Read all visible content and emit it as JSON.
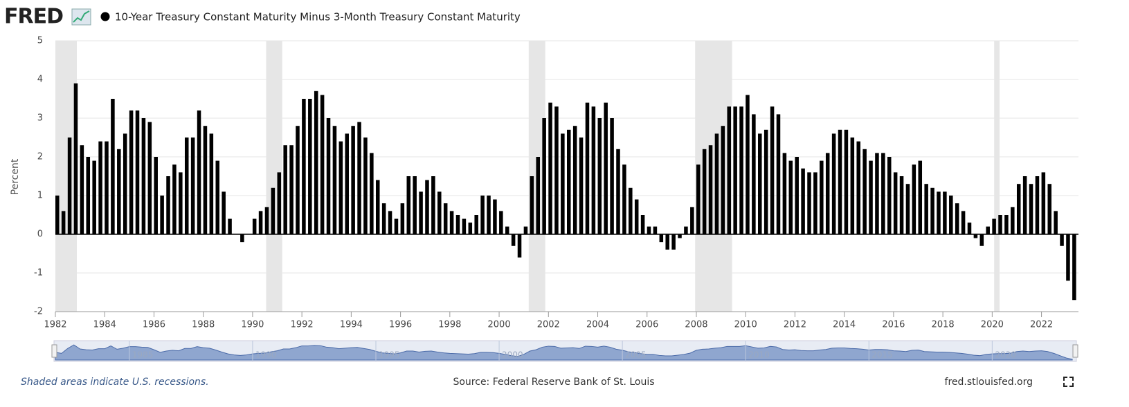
{
  "logo": "FRED",
  "chart_data": {
    "type": "bar",
    "title": "10-Year Treasury Constant Maturity Minus 3-Month Treasury Constant Maturity",
    "y_label": "Percent",
    "color": "#000000",
    "recession_color": "#e6e6e6",
    "grid": true,
    "xlim": [
      1982,
      2023.5
    ],
    "ylim": [
      -2,
      5
    ],
    "yticks": [
      -2,
      -1,
      0,
      1,
      2,
      3,
      4,
      5
    ],
    "xticks": [
      1982,
      1984,
      1986,
      1988,
      1990,
      1992,
      1994,
      1996,
      1998,
      2000,
      2002,
      2004,
      2006,
      2008,
      2010,
      2012,
      2014,
      2016,
      2018,
      2020,
      2022
    ],
    "recessions": [
      [
        1982,
        1982.87
      ],
      [
        1990.55,
        1991.2
      ],
      [
        2001.2,
        2001.87
      ],
      [
        2007.95,
        2009.45
      ],
      [
        2020.08,
        2020.3
      ]
    ],
    "x": [
      1982,
      1982.25,
      1982.5,
      1982.75,
      1983,
      1983.25,
      1983.5,
      1983.75,
      1984,
      1984.25,
      1984.5,
      1984.75,
      1985,
      1985.25,
      1985.5,
      1985.75,
      1986,
      1986.25,
      1986.5,
      1986.75,
      1987,
      1987.25,
      1987.5,
      1987.75,
      1988,
      1988.25,
      1988.5,
      1988.75,
      1989,
      1989.25,
      1989.5,
      1989.75,
      1990,
      1990.25,
      1990.5,
      1990.75,
      1991,
      1991.25,
      1991.5,
      1991.75,
      1992,
      1992.25,
      1992.5,
      1992.75,
      1993,
      1993.25,
      1993.5,
      1993.75,
      1994,
      1994.25,
      1994.5,
      1994.75,
      1995,
      1995.25,
      1995.5,
      1995.75,
      1996,
      1996.25,
      1996.5,
      1996.75,
      1997,
      1997.25,
      1997.5,
      1997.75,
      1998,
      1998.25,
      1998.5,
      1998.75,
      1999,
      1999.25,
      1999.5,
      1999.75,
      2000,
      2000.25,
      2000.5,
      2000.75,
      2001,
      2001.25,
      2001.5,
      2001.75,
      2002,
      2002.25,
      2002.5,
      2002.75,
      2003,
      2003.25,
      2003.5,
      2003.75,
      2004,
      2004.25,
      2004.5,
      2004.75,
      2005,
      2005.25,
      2005.5,
      2005.75,
      2006,
      2006.25,
      2006.5,
      2006.75,
      2007,
      2007.25,
      2007.5,
      2007.75,
      2008,
      2008.25,
      2008.5,
      2008.75,
      2009,
      2009.25,
      2009.5,
      2009.75,
      2010,
      2010.25,
      2010.5,
      2010.75,
      2011,
      2011.25,
      2011.5,
      2011.75,
      2012,
      2012.25,
      2012.5,
      2012.75,
      2013,
      2013.25,
      2013.5,
      2013.75,
      2014,
      2014.25,
      2014.5,
      2014.75,
      2015,
      2015.25,
      2015.5,
      2015.75,
      2016,
      2016.25,
      2016.5,
      2016.75,
      2017,
      2017.25,
      2017.5,
      2017.75,
      2018,
      2018.25,
      2018.5,
      2018.75,
      2019,
      2019.25,
      2019.5,
      2019.75,
      2020,
      2020.25,
      2020.5,
      2020.75,
      2021,
      2021.25,
      2021.5,
      2021.75,
      2022,
      2022.25,
      2022.5,
      2022.75,
      2023,
      2023.25
    ],
    "values": [
      1.0,
      0.6,
      2.5,
      3.9,
      2.3,
      2.0,
      1.9,
      2.4,
      2.4,
      3.5,
      2.2,
      2.6,
      3.2,
      3.2,
      3.0,
      2.9,
      2.0,
      1.0,
      1.5,
      1.8,
      1.6,
      2.5,
      2.5,
      3.2,
      2.8,
      2.6,
      1.9,
      1.1,
      0.4,
      0.0,
      -0.2,
      0.0,
      0.4,
      0.6,
      0.7,
      1.2,
      1.6,
      2.3,
      2.3,
      2.8,
      3.5,
      3.5,
      3.7,
      3.6,
      3.0,
      2.8,
      2.4,
      2.6,
      2.8,
      2.9,
      2.5,
      2.1,
      1.4,
      0.8,
      0.6,
      0.4,
      0.8,
      1.5,
      1.5,
      1.1,
      1.4,
      1.5,
      1.1,
      0.8,
      0.6,
      0.5,
      0.4,
      0.3,
      0.5,
      1.0,
      1.0,
      0.9,
      0.6,
      0.2,
      -0.3,
      -0.6,
      0.2,
      1.5,
      2.0,
      3.0,
      3.4,
      3.3,
      2.6,
      2.7,
      2.8,
      2.5,
      3.4,
      3.3,
      3.0,
      3.4,
      3.0,
      2.2,
      1.8,
      1.2,
      0.9,
      0.5,
      0.2,
      0.2,
      -0.2,
      -0.4,
      -0.4,
      -0.1,
      0.2,
      0.7,
      1.8,
      2.2,
      2.3,
      2.6,
      2.8,
      3.3,
      3.3,
      3.3,
      3.6,
      3.1,
      2.6,
      2.7,
      3.3,
      3.1,
      2.1,
      1.9,
      2.0,
      1.7,
      1.6,
      1.6,
      1.9,
      2.1,
      2.6,
      2.7,
      2.7,
      2.5,
      2.4,
      2.2,
      1.9,
      2.1,
      2.1,
      2.0,
      1.6,
      1.5,
      1.3,
      1.8,
      1.9,
      1.3,
      1.2,
      1.1,
      1.1,
      1.0,
      0.8,
      0.6,
      0.3,
      -0.1,
      -0.3,
      0.2,
      0.4,
      0.5,
      0.5,
      0.7,
      1.3,
      1.5,
      1.3,
      1.5,
      1.6,
      1.3,
      0.6,
      -0.3,
      -1.2,
      -1.7
    ],
    "navigator_labels": [
      1985,
      1990,
      1995,
      2000,
      2005,
      2010,
      2015,
      2020
    ]
  },
  "footer": {
    "note": "Shaded areas indicate U.S. recessions.",
    "source": "Source: Federal Reserve Bank of St. Louis",
    "site": "fred.stlouisfed.org"
  }
}
